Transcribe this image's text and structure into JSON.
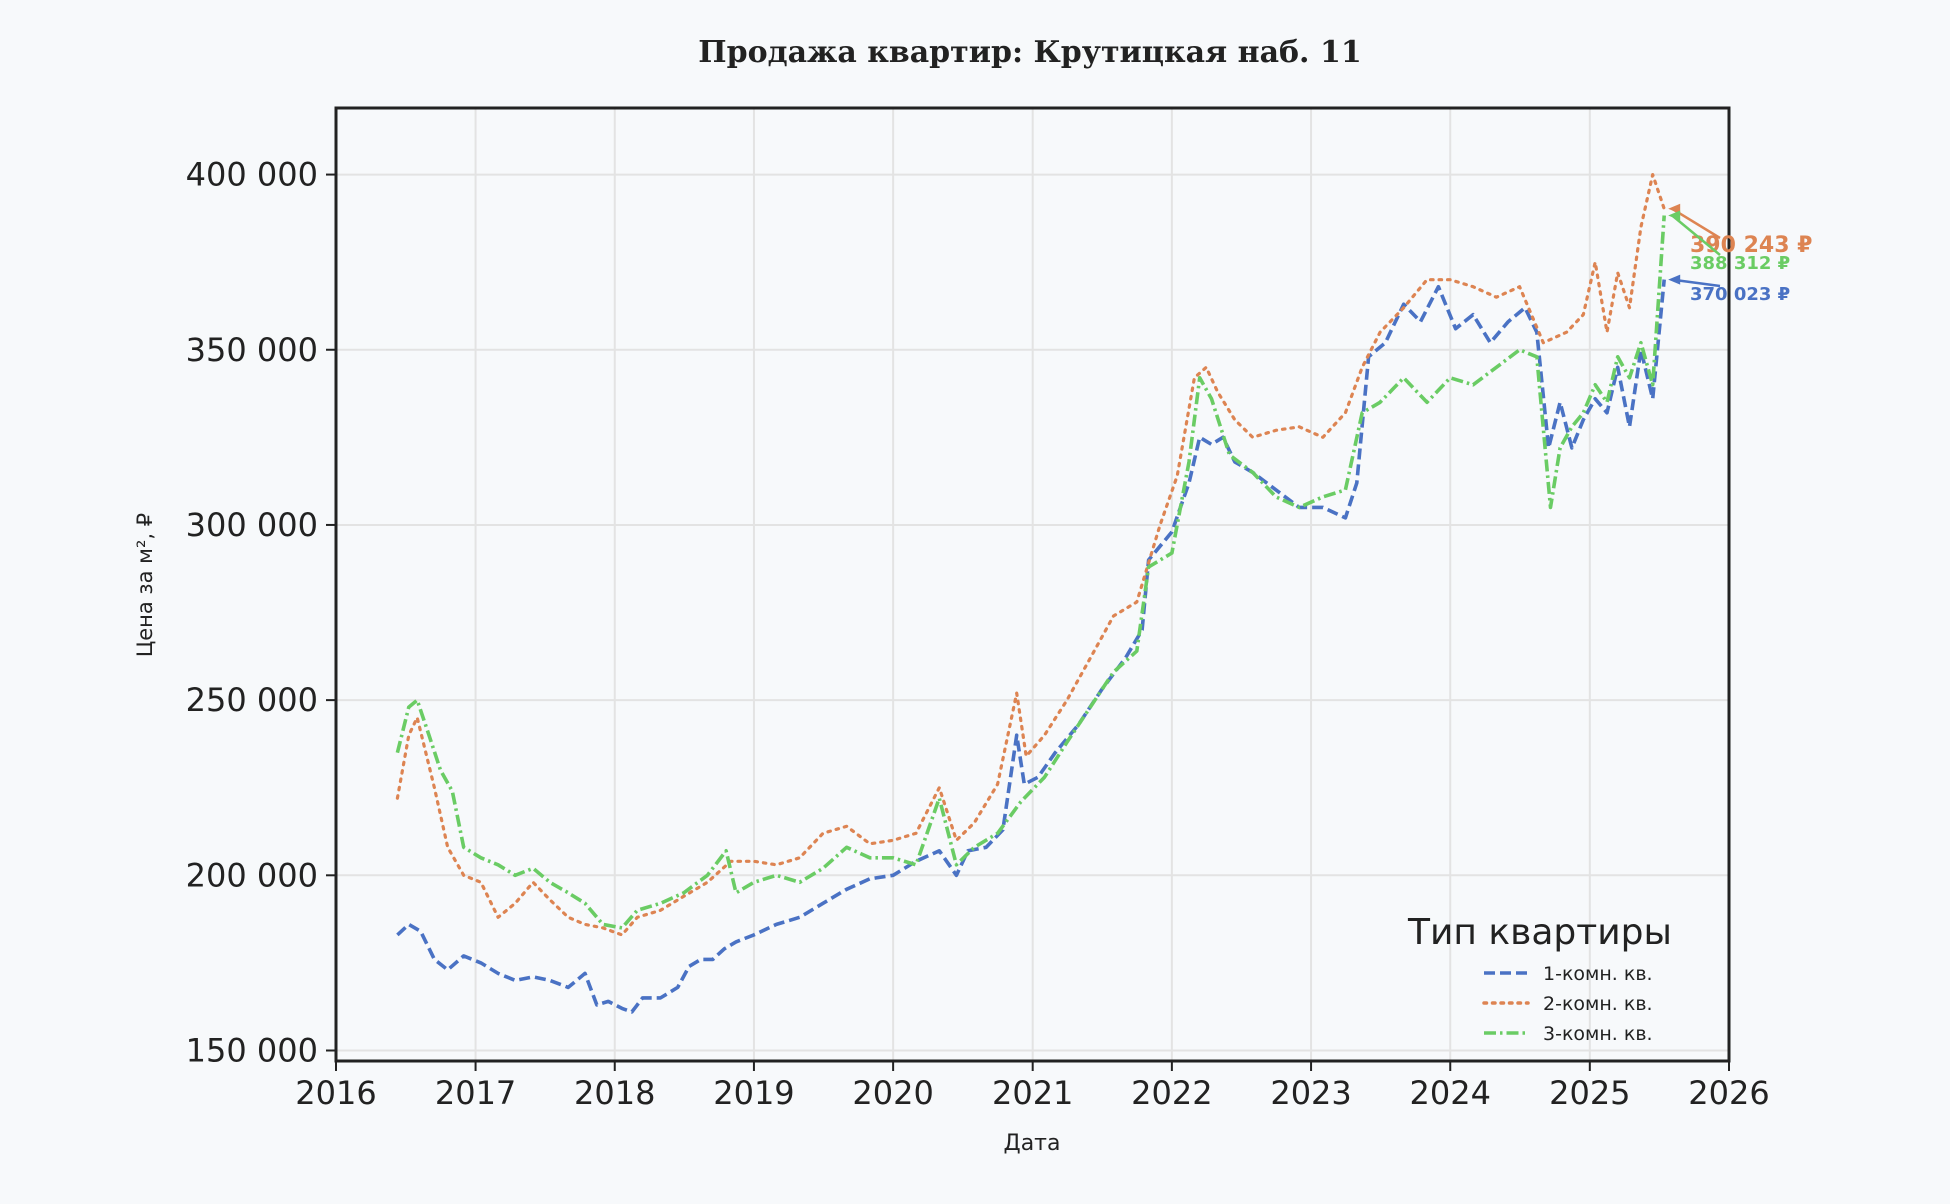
{
  "chart_data": {
    "type": "line",
    "title": "Продажа квартир: Крутицкая наб. 11",
    "xlabel": "Дата",
    "ylabel": "Цена за м², ₽",
    "xlim": [
      "2016-01-01",
      "2026-01-01"
    ],
    "ylim": [
      147000,
      419000
    ],
    "x_ticks": [
      "2016",
      "2017",
      "2018",
      "2019",
      "2020",
      "2021",
      "2022",
      "2023",
      "2024",
      "2025",
      "2026"
    ],
    "y_ticks": [
      150000,
      200000,
      250000,
      300000,
      350000,
      400000
    ],
    "y_tick_labels": [
      "150 000",
      "200 000",
      "250 000",
      "300 000",
      "350 000",
      "400 000"
    ],
    "grid": true,
    "legend": {
      "title": "Тип квартиры",
      "placement": "lower-right"
    },
    "series": [
      {
        "name": "1-комн. кв.",
        "color": "#4a72c4",
        "dash": "dashed",
        "points": [
          [
            "2016-06-10",
            183000
          ],
          [
            "2016-07-10",
            186000
          ],
          [
            "2016-08-10",
            184000
          ],
          [
            "2016-09-15",
            176000
          ],
          [
            "2016-10-20",
            173000
          ],
          [
            "2016-12-01",
            177000
          ],
          [
            "2017-01-15",
            175000
          ],
          [
            "2017-03-01",
            172000
          ],
          [
            "2017-04-15",
            170000
          ],
          [
            "2017-06-01",
            171000
          ],
          [
            "2017-07-15",
            170000
          ],
          [
            "2017-09-01",
            168000
          ],
          [
            "2017-10-15",
            172000
          ],
          [
            "2017-11-15",
            163000
          ],
          [
            "2017-12-15",
            164000
          ],
          [
            "2018-01-20",
            162000
          ],
          [
            "2018-02-15",
            161000
          ],
          [
            "2018-03-15",
            165000
          ],
          [
            "2018-05-01",
            165000
          ],
          [
            "2018-06-15",
            168000
          ],
          [
            "2018-07-15",
            174000
          ],
          [
            "2018-08-15",
            176000
          ],
          [
            "2018-09-15",
            176000
          ],
          [
            "2018-10-15",
            179000
          ],
          [
            "2018-11-15",
            181000
          ],
          [
            "2019-01-01",
            183000
          ],
          [
            "2019-03-01",
            186000
          ],
          [
            "2019-05-01",
            188000
          ],
          [
            "2019-07-01",
            192000
          ],
          [
            "2019-09-01",
            196000
          ],
          [
            "2019-11-01",
            199000
          ],
          [
            "2020-01-01",
            200000
          ],
          [
            "2020-03-01",
            204000
          ],
          [
            "2020-05-01",
            207000
          ],
          [
            "2020-06-15",
            200000
          ],
          [
            "2020-07-15",
            207000
          ],
          [
            "2020-09-01",
            208000
          ],
          [
            "2020-10-15",
            213000
          ],
          [
            "2020-11-20",
            240000
          ],
          [
            "2020-12-10",
            226000
          ],
          [
            "2021-01-15",
            228000
          ],
          [
            "2021-03-01",
            235000
          ],
          [
            "2021-05-01",
            243000
          ],
          [
            "2021-07-01",
            253000
          ],
          [
            "2021-09-01",
            262000
          ],
          [
            "2021-10-15",
            270000
          ],
          [
            "2021-11-01",
            290000
          ],
          [
            "2022-01-01",
            298000
          ],
          [
            "2022-02-15",
            312000
          ],
          [
            "2022-03-15",
            325000
          ],
          [
            "2022-04-15",
            323000
          ],
          [
            "2022-05-15",
            325000
          ],
          [
            "2022-06-15",
            318000
          ],
          [
            "2022-08-01",
            315000
          ],
          [
            "2022-10-01",
            310000
          ],
          [
            "2022-12-01",
            305000
          ],
          [
            "2023-02-01",
            305000
          ],
          [
            "2023-04-01",
            302000
          ],
          [
            "2023-05-01",
            312000
          ],
          [
            "2023-06-01",
            348000
          ],
          [
            "2023-07-15",
            352000
          ],
          [
            "2023-09-01",
            363000
          ],
          [
            "2023-10-15",
            358000
          ],
          [
            "2023-12-01",
            368000
          ],
          [
            "2024-01-15",
            356000
          ],
          [
            "2024-03-01",
            360000
          ],
          [
            "2024-04-15",
            352000
          ],
          [
            "2024-06-01",
            358000
          ],
          [
            "2024-07-15",
            362000
          ],
          [
            "2024-08-15",
            355000
          ],
          [
            "2024-09-15",
            322000
          ],
          [
            "2024-10-15",
            335000
          ],
          [
            "2024-11-15",
            322000
          ],
          [
            "2024-12-15",
            330000
          ],
          [
            "2025-01-15",
            336000
          ],
          [
            "2025-02-15",
            332000
          ],
          [
            "2025-03-15",
            345000
          ],
          [
            "2025-04-15",
            328000
          ],
          [
            "2025-05-15",
            350000
          ],
          [
            "2025-06-15",
            336000
          ],
          [
            "2025-07-15",
            370023
          ]
        ],
        "last_label": "370 023 ₽"
      },
      {
        "name": "2-комн. кв.",
        "color": "#dd8452",
        "dash": "dotted",
        "points": [
          [
            "2016-06-10",
            222000
          ],
          [
            "2016-07-10",
            240000
          ],
          [
            "2016-08-01",
            245000
          ],
          [
            "2016-09-15",
            225000
          ],
          [
            "2016-10-20",
            208000
          ],
          [
            "2016-12-01",
            200000
          ],
          [
            "2017-01-15",
            198000
          ],
          [
            "2017-03-01",
            188000
          ],
          [
            "2017-04-15",
            192000
          ],
          [
            "2017-06-01",
            198000
          ],
          [
            "2017-07-15",
            193000
          ],
          [
            "2017-09-01",
            188000
          ],
          [
            "2017-10-15",
            186000
          ],
          [
            "2017-12-01",
            185000
          ],
          [
            "2018-01-20",
            183000
          ],
          [
            "2018-03-01",
            188000
          ],
          [
            "2018-05-01",
            190000
          ],
          [
            "2018-07-01",
            194000
          ],
          [
            "2018-09-01",
            198000
          ],
          [
            "2018-11-01",
            204000
          ],
          [
            "2019-01-01",
            204000
          ],
          [
            "2019-03-01",
            203000
          ],
          [
            "2019-05-01",
            205000
          ],
          [
            "2019-07-01",
            212000
          ],
          [
            "2019-09-01",
            214000
          ],
          [
            "2019-11-01",
            209000
          ],
          [
            "2020-01-01",
            210000
          ],
          [
            "2020-03-01",
            212000
          ],
          [
            "2020-05-01",
            225000
          ],
          [
            "2020-06-15",
            210000
          ],
          [
            "2020-08-01",
            215000
          ],
          [
            "2020-10-01",
            226000
          ],
          [
            "2020-11-20",
            252000
          ],
          [
            "2020-12-15",
            234000
          ],
          [
            "2021-02-01",
            240000
          ],
          [
            "2021-04-01",
            250000
          ],
          [
            "2021-06-01",
            262000
          ],
          [
            "2021-08-01",
            274000
          ],
          [
            "2021-10-01",
            278000
          ],
          [
            "2021-12-01",
            300000
          ],
          [
            "2022-01-15",
            314000
          ],
          [
            "2022-03-01",
            342000
          ],
          [
            "2022-04-01",
            345000
          ],
          [
            "2022-05-01",
            338000
          ],
          [
            "2022-06-15",
            330000
          ],
          [
            "2022-08-01",
            325000
          ],
          [
            "2022-10-01",
            327000
          ],
          [
            "2022-12-01",
            328000
          ],
          [
            "2023-02-01",
            325000
          ],
          [
            "2023-04-01",
            332000
          ],
          [
            "2023-05-15",
            345000
          ],
          [
            "2023-07-01",
            355000
          ],
          [
            "2023-09-01",
            362000
          ],
          [
            "2023-11-01",
            370000
          ],
          [
            "2024-01-01",
            370000
          ],
          [
            "2024-03-01",
            368000
          ],
          [
            "2024-05-01",
            365000
          ],
          [
            "2024-07-01",
            368000
          ],
          [
            "2024-09-01",
            352000
          ],
          [
            "2024-11-01",
            355000
          ],
          [
            "2024-12-15",
            360000
          ],
          [
            "2025-01-15",
            375000
          ],
          [
            "2025-02-15",
            355000
          ],
          [
            "2025-03-15",
            372000
          ],
          [
            "2025-04-15",
            362000
          ],
          [
            "2025-05-15",
            385000
          ],
          [
            "2025-06-15",
            400000
          ],
          [
            "2025-07-15",
            390243
          ]
        ],
        "last_label": "390 243 ₽"
      },
      {
        "name": "3-комн. кв.",
        "color": "#6acc64",
        "dash": "dashdot",
        "points": [
          [
            "2016-06-10",
            235000
          ],
          [
            "2016-07-10",
            248000
          ],
          [
            "2016-08-01",
            250000
          ],
          [
            "2016-09-01",
            240000
          ],
          [
            "2016-10-01",
            230000
          ],
          [
            "2016-11-01",
            224000
          ],
          [
            "2016-12-01",
            208000
          ],
          [
            "2017-01-15",
            205000
          ],
          [
            "2017-03-01",
            203000
          ],
          [
            "2017-04-15",
            200000
          ],
          [
            "2017-06-01",
            202000
          ],
          [
            "2017-07-15",
            198000
          ],
          [
            "2017-09-01",
            195000
          ],
          [
            "2017-10-15",
            192000
          ],
          [
            "2017-12-01",
            186000
          ],
          [
            "2018-01-20",
            185000
          ],
          [
            "2018-03-01",
            190000
          ],
          [
            "2018-05-01",
            192000
          ],
          [
            "2018-07-01",
            195000
          ],
          [
            "2018-09-01",
            200000
          ],
          [
            "2018-10-20",
            207000
          ],
          [
            "2018-11-15",
            195000
          ],
          [
            "2019-01-01",
            198000
          ],
          [
            "2019-03-01",
            200000
          ],
          [
            "2019-05-01",
            198000
          ],
          [
            "2019-07-01",
            202000
          ],
          [
            "2019-09-01",
            208000
          ],
          [
            "2019-11-01",
            205000
          ],
          [
            "2020-01-01",
            205000
          ],
          [
            "2020-03-01",
            203000
          ],
          [
            "2020-05-01",
            222000
          ],
          [
            "2020-06-15",
            203000
          ],
          [
            "2020-08-01",
            208000
          ],
          [
            "2020-10-01",
            212000
          ],
          [
            "2020-12-01",
            221000
          ],
          [
            "2021-02-01",
            228000
          ],
          [
            "2021-04-01",
            238000
          ],
          [
            "2021-06-01",
            248000
          ],
          [
            "2021-08-01",
            258000
          ],
          [
            "2021-10-01",
            264000
          ],
          [
            "2021-11-01",
            288000
          ],
          [
            "2022-01-01",
            292000
          ],
          [
            "2022-02-15",
            318000
          ],
          [
            "2022-03-15",
            342000
          ],
          [
            "2022-04-15",
            336000
          ],
          [
            "2022-06-01",
            320000
          ],
          [
            "2022-08-01",
            315000
          ],
          [
            "2022-10-01",
            308000
          ],
          [
            "2022-12-01",
            305000
          ],
          [
            "2023-02-01",
            308000
          ],
          [
            "2023-04-01",
            310000
          ],
          [
            "2023-05-15",
            332000
          ],
          [
            "2023-07-01",
            335000
          ],
          [
            "2023-09-01",
            342000
          ],
          [
            "2023-11-01",
            335000
          ],
          [
            "2024-01-01",
            342000
          ],
          [
            "2024-03-01",
            340000
          ],
          [
            "2024-05-01",
            345000
          ],
          [
            "2024-07-01",
            350000
          ],
          [
            "2024-08-15",
            348000
          ],
          [
            "2024-09-20",
            305000
          ],
          [
            "2024-10-15",
            322000
          ],
          [
            "2024-11-15",
            328000
          ],
          [
            "2024-12-15",
            332000
          ],
          [
            "2025-01-15",
            340000
          ],
          [
            "2025-02-15",
            335000
          ],
          [
            "2025-03-15",
            348000
          ],
          [
            "2025-04-15",
            342000
          ],
          [
            "2025-05-15",
            352000
          ],
          [
            "2025-06-15",
            340000
          ],
          [
            "2025-07-15",
            388312
          ]
        ],
        "last_label": "388 312 ₽"
      }
    ]
  }
}
